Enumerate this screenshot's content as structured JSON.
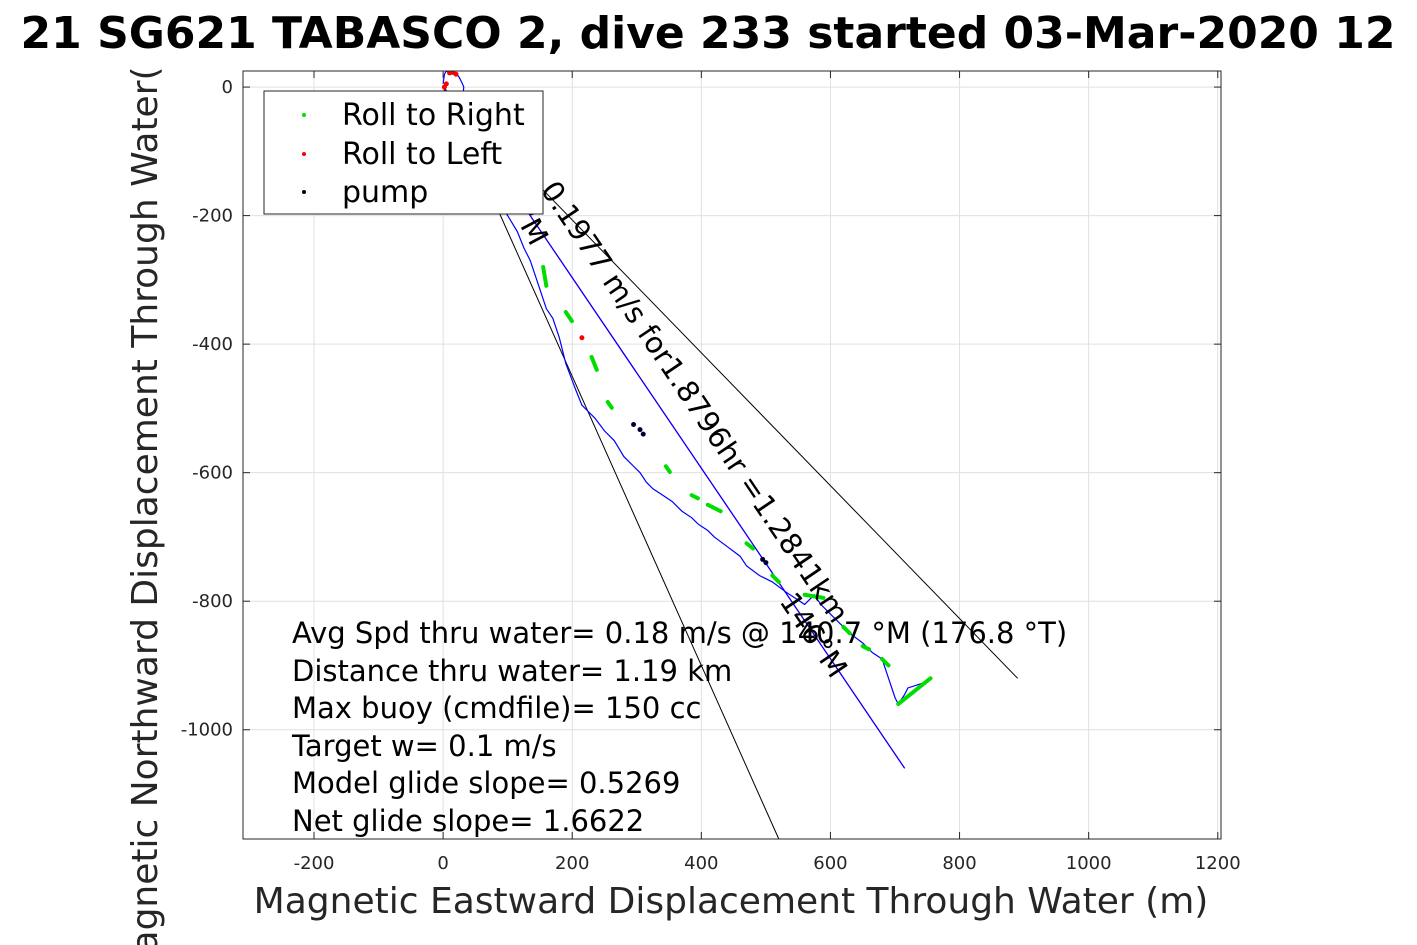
{
  "chart_data": {
    "type": "scatter",
    "title": "21 SG621 TABASCO 2, dive 233 started 03-Mar-2020 12",
    "xlabel": "Magnetic Eastward Displacement Through Water (m)",
    "ylabel": "Magnetic Northward Displacement Through Water(",
    "xlim": [
      -310,
      1205
    ],
    "ylim": [
      -1170,
      25
    ],
    "xticks": [
      -200,
      0,
      200,
      400,
      600,
      800,
      1000,
      1200
    ],
    "yticks": [
      0,
      -200,
      -400,
      -600,
      -800,
      -1000
    ],
    "xtick_labels": [
      "-200",
      "0",
      "200",
      "400",
      "600",
      "800",
      "1000",
      "1200"
    ],
    "ytick_labels": [
      "0",
      "-200",
      "-400",
      "-600",
      "-800",
      "-1000"
    ],
    "grid": true,
    "legend_position": "top-left",
    "legend": [
      {
        "label": "Roll to Right",
        "color": "#00dd00"
      },
      {
        "label": "Roll to Left",
        "color": "#ff0000"
      },
      {
        "label": "pump",
        "color": "#000000"
      }
    ],
    "track": {
      "color": "#0000ff",
      "x": [
        0,
        2,
        5,
        10,
        15,
        20,
        25,
        30,
        32,
        30,
        35,
        45,
        60,
        80,
        100,
        115,
        125,
        135,
        145,
        155,
        160,
        170,
        180,
        190,
        205,
        215,
        225,
        235,
        250,
        265,
        280,
        295,
        305,
        315,
        325,
        340,
        355,
        370,
        385,
        395,
        410,
        420,
        440,
        460,
        470,
        490,
        510,
        530,
        545,
        560,
        575,
        585,
        600,
        615,
        630,
        650,
        665,
        680,
        690,
        700,
        705,
        715,
        720,
        735,
        750,
        755
      ],
      "y": [
        5,
        20,
        25,
        22,
        20,
        22,
        15,
        5,
        0,
        -20,
        -60,
        -100,
        -140,
        -175,
        -200,
        -225,
        -250,
        -270,
        -300,
        -330,
        -345,
        -360,
        -390,
        -430,
        -470,
        -495,
        -505,
        -515,
        -535,
        -550,
        -575,
        -590,
        -600,
        -615,
        -625,
        -635,
        -645,
        -660,
        -670,
        -680,
        -690,
        -700,
        -715,
        -730,
        -745,
        -760,
        -770,
        -785,
        -795,
        -805,
        -790,
        -805,
        -820,
        -835,
        -850,
        -865,
        -880,
        -890,
        -920,
        -950,
        -960,
        -945,
        -935,
        -930,
        -925,
        -920
      ]
    },
    "roll_right_segments": [
      {
        "x": [
          155,
          160
        ],
        "y": [
          -280,
          -310
        ]
      },
      {
        "x": [
          190,
          200
        ],
        "y": [
          -350,
          -365
        ]
      },
      {
        "x": [
          230,
          238
        ],
        "y": [
          -420,
          -440
        ]
      },
      {
        "x": [
          255,
          262
        ],
        "y": [
          -490,
          -500
        ]
      },
      {
        "x": [
          345,
          352
        ],
        "y": [
          -590,
          -600
        ]
      },
      {
        "x": [
          385,
          395
        ],
        "y": [
          -635,
          -640
        ]
      },
      {
        "x": [
          410,
          430
        ],
        "y": [
          -650,
          -660
        ]
      },
      {
        "x": [
          470,
          480
        ],
        "y": [
          -710,
          -718
        ]
      },
      {
        "x": [
          510,
          520
        ],
        "y": [
          -760,
          -770
        ]
      },
      {
        "x": [
          560,
          590
        ],
        "y": [
          -790,
          -795
        ]
      },
      {
        "x": [
          620,
          630
        ],
        "y": [
          -840,
          -850
        ]
      },
      {
        "x": [
          650,
          660
        ],
        "y": [
          -870,
          -875
        ]
      },
      {
        "x": [
          680,
          690
        ],
        "y": [
          -890,
          -900
        ]
      },
      {
        "x": [
          705,
          755
        ],
        "y": [
          -960,
          -920
        ]
      }
    ],
    "roll_left_points": {
      "x": [
        2,
        5,
        10,
        15,
        20,
        215
      ],
      "y": [
        0,
        5,
        22,
        24,
        20,
        -390
      ]
    },
    "pump_points": {
      "x": [
        295,
        305,
        310,
        495,
        500
      ],
      "y": [
        -525,
        -533,
        -540,
        -735,
        -740
      ]
    },
    "lines": [
      {
        "name": "heading line",
        "color": "#000000",
        "x": [
          0,
          520
        ],
        "y": [
          0,
          -1170
        ]
      },
      {
        "name": "heading line",
        "color": "#000000",
        "x": [
          0,
          890
        ],
        "y": [
          0,
          -920
        ]
      },
      {
        "name": "course line",
        "color": "#cc00cc",
        "x": [
          0,
          715
        ],
        "y": [
          0,
          -1060
        ]
      },
      {
        "name": "course line",
        "color": "#0000ff",
        "x": [
          0,
          715
        ],
        "y": [
          0,
          -1060
        ]
      }
    ],
    "rotated_labels": [
      {
        "text": "0.1977 m/s for1.8796hr =1.2841km",
        "x": 150,
        "y": -160,
        "angle_deg": 56
      },
      {
        "text": "146°M",
        "x": 520,
        "y": -800,
        "angle_deg": 56
      },
      {
        "text": "°M",
        "x": 108,
        "y": -195,
        "angle_deg": 62
      }
    ],
    "annotations": [
      "Avg Spd thru water=  0.18 m/s @ 140.7 °M (176.8 °T)",
      "Distance thru water=  1.19 km",
      "Max buoy (cmdfile)= 150 cc",
      "Target w= 0.1 m/s",
      "Model glide slope= 0.5269",
      "Net glide slope= 1.6622"
    ]
  }
}
